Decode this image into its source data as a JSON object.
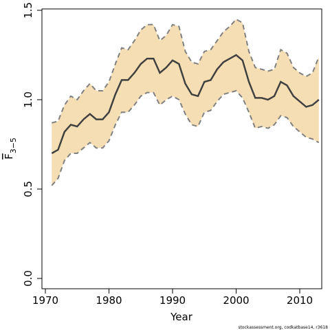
{
  "chart_data": {
    "type": "line",
    "xlabel": "Year",
    "ylabel_main": "F",
    "ylabel_sub": "3−5",
    "xlim": [
      1970,
      2014
    ],
    "ylim": [
      0.0,
      1.5
    ],
    "x_ticks": [
      1970,
      1980,
      1990,
      2000,
      2010
    ],
    "x_tick_labels": [
      "1970",
      "1980",
      "1990",
      "2000",
      "2010"
    ],
    "y_ticks": [
      0.0,
      0.5,
      1.0,
      1.5
    ],
    "y_tick_labels": [
      "0.0",
      "0.5",
      "1.0",
      "1.5"
    ],
    "grid": false,
    "colors": {
      "band": "#f5deb3",
      "estimate": "#404040",
      "bounds": "#808080"
    },
    "x": [
      1971,
      1972,
      1973,
      1974,
      1975,
      1976,
      1977,
      1978,
      1979,
      1980,
      1981,
      1982,
      1983,
      1984,
      1985,
      1986,
      1987,
      1988,
      1989,
      1990,
      1991,
      1992,
      1993,
      1994,
      1995,
      1996,
      1997,
      1998,
      1999,
      2000,
      2001,
      2002,
      2003,
      2004,
      2005,
      2006,
      2007,
      2008,
      2009,
      2010,
      2011,
      2012,
      2013
    ],
    "series": [
      {
        "role": "estimate",
        "values": [
          0.7,
          0.72,
          0.82,
          0.86,
          0.85,
          0.89,
          0.92,
          0.89,
          0.89,
          0.93,
          1.03,
          1.11,
          1.11,
          1.15,
          1.2,
          1.23,
          1.23,
          1.15,
          1.18,
          1.22,
          1.2,
          1.09,
          1.03,
          1.02,
          1.1,
          1.11,
          1.17,
          1.21,
          1.23,
          1.25,
          1.22,
          1.1,
          1.01,
          1.01,
          1.0,
          1.02,
          1.1,
          1.08,
          1.02,
          0.99,
          0.96,
          0.97,
          1.0
        ]
      },
      {
        "role": "upper",
        "values": [
          0.87,
          0.88,
          0.97,
          1.02,
          1.0,
          1.05,
          1.09,
          1.05,
          1.05,
          1.1,
          1.2,
          1.29,
          1.28,
          1.33,
          1.39,
          1.42,
          1.42,
          1.33,
          1.36,
          1.42,
          1.41,
          1.27,
          1.21,
          1.2,
          1.27,
          1.28,
          1.33,
          1.38,
          1.41,
          1.45,
          1.43,
          1.27,
          1.18,
          1.17,
          1.16,
          1.17,
          1.28,
          1.26,
          1.18,
          1.15,
          1.13,
          1.15,
          1.24
        ]
      },
      {
        "role": "lower",
        "values": [
          0.52,
          0.56,
          0.66,
          0.7,
          0.7,
          0.73,
          0.76,
          0.73,
          0.73,
          0.77,
          0.86,
          0.93,
          0.93,
          0.97,
          1.02,
          1.04,
          1.04,
          0.97,
          1.0,
          1.02,
          1.0,
          0.92,
          0.86,
          0.85,
          0.93,
          0.94,
          0.99,
          1.03,
          1.04,
          1.05,
          1.01,
          0.93,
          0.84,
          0.85,
          0.84,
          0.86,
          0.91,
          0.9,
          0.85,
          0.82,
          0.79,
          0.78,
          0.76
        ]
      }
    ]
  },
  "footer": "stockassessment.org, codkatbase14, r3618"
}
